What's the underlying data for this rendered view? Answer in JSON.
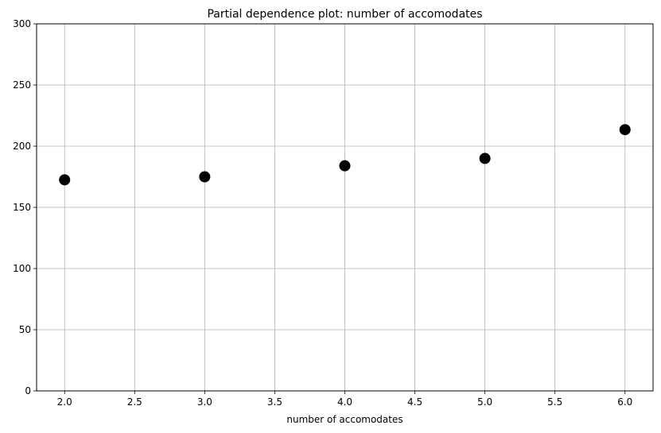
{
  "chart_data": {
    "type": "scatter",
    "title": "Partial dependence plot: number of accomodates",
    "xlabel": "number of accomodates",
    "ylabel": "",
    "x": [
      2,
      3,
      4,
      5,
      6
    ],
    "y": [
      172.5,
      175,
      184,
      190,
      213.5
    ],
    "xlim": [
      1.8,
      6.2
    ],
    "ylim": [
      0,
      300
    ],
    "x_ticks": [
      "2.0",
      "2.5",
      "3.0",
      "3.5",
      "4.0",
      "4.5",
      "5.0",
      "5.5",
      "6.0"
    ],
    "y_ticks": [
      "0",
      "50",
      "100",
      "150",
      "200",
      "250",
      "300"
    ],
    "grid": true,
    "marker_color": "#000000",
    "grid_color": "#b0b0b0"
  }
}
